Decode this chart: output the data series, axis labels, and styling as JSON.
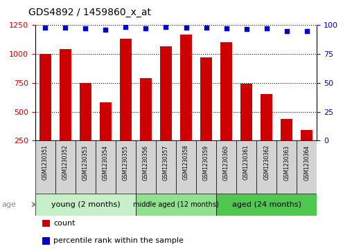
{
  "title": "GDS4892 / 1459860_x_at",
  "samples": [
    "GSM1230351",
    "GSM1230352",
    "GSM1230353",
    "GSM1230354",
    "GSM1230355",
    "GSM1230356",
    "GSM1230357",
    "GSM1230358",
    "GSM1230359",
    "GSM1230360",
    "GSM1230361",
    "GSM1230362",
    "GSM1230363",
    "GSM1230364"
  ],
  "counts": [
    1000,
    1042,
    750,
    580,
    1130,
    790,
    1065,
    1170,
    970,
    1100,
    740,
    650,
    440,
    340
  ],
  "percentiles": [
    98,
    98,
    97,
    96,
    98.5,
    97,
    98.5,
    98,
    98,
    97,
    96.5,
    97,
    95,
    95
  ],
  "ylim_left": [
    250,
    1250
  ],
  "ylim_right": [
    0,
    100
  ],
  "yticks_left": [
    250,
    500,
    750,
    1000,
    1250
  ],
  "yticks_right": [
    0,
    25,
    50,
    75,
    100
  ],
  "bar_color": "#cc0000",
  "dot_color": "#0000cc",
  "bar_width": 0.6,
  "groups": [
    {
      "label": "young (2 months)",
      "start": 0,
      "end": 4,
      "color": "#c8f0c8"
    },
    {
      "label": "middle aged (12 months)",
      "start": 5,
      "end": 8,
      "color": "#90e090"
    },
    {
      "label": "aged (24 months)",
      "start": 9,
      "end": 13,
      "color": "#50c850"
    }
  ],
  "age_label": "age",
  "left_tick_color": "#cc0000",
  "right_tick_color": "#0000cc",
  "legend_items": [
    {
      "label": "count",
      "color": "#cc0000"
    },
    {
      "label": "percentile rank within the sample",
      "color": "#0000cc"
    }
  ],
  "box_color": "#d3d3d3",
  "title_fontsize": 10,
  "tick_fontsize": 8,
  "sample_fontsize": 5.5,
  "group_fontsize_large": 8,
  "group_fontsize_small": 7,
  "legend_fontsize": 8
}
